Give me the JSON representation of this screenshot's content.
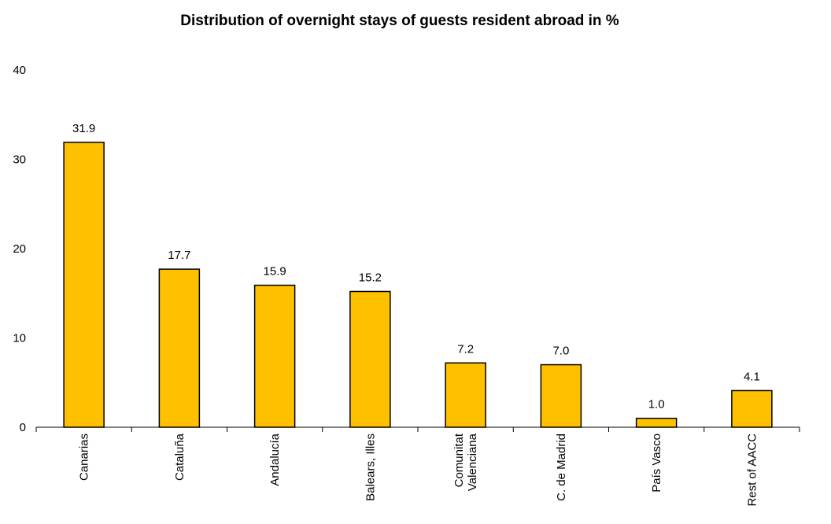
{
  "chart_data": {
    "type": "bar",
    "title": "Distribution of overnight stays of guests resident abroad in %",
    "categories": [
      "Canarias",
      "Cataluña",
      "Andalucía",
      "Balears, Illes",
      "Comunitat Valenciana",
      "C. de Madrid",
      "País Vasco",
      "Rest of AACC"
    ],
    "category_lines": [
      [
        "Canarias"
      ],
      [
        "Cataluña"
      ],
      [
        "Andalucía"
      ],
      [
        "Balears, Illes"
      ],
      [
        "Comunitat",
        "Valenciana"
      ],
      [
        "C. de Madrid"
      ],
      [
        "País Vasco"
      ],
      [
        "Rest of AACC"
      ]
    ],
    "values": [
      31.9,
      17.7,
      15.9,
      15.2,
      7.2,
      7.0,
      1.0,
      4.1
    ],
    "value_labels": [
      "31.9",
      "17.7",
      "15.9",
      "15.2",
      "7.2",
      "7.0",
      "1.0",
      "4.1"
    ],
    "yticks": [
      "0",
      "10",
      "20",
      "30",
      "40"
    ],
    "ylim": [
      0,
      40
    ],
    "grid": false,
    "legend": "none",
    "bar_color": "#FFC000",
    "bar_edge_color": "#000000"
  }
}
